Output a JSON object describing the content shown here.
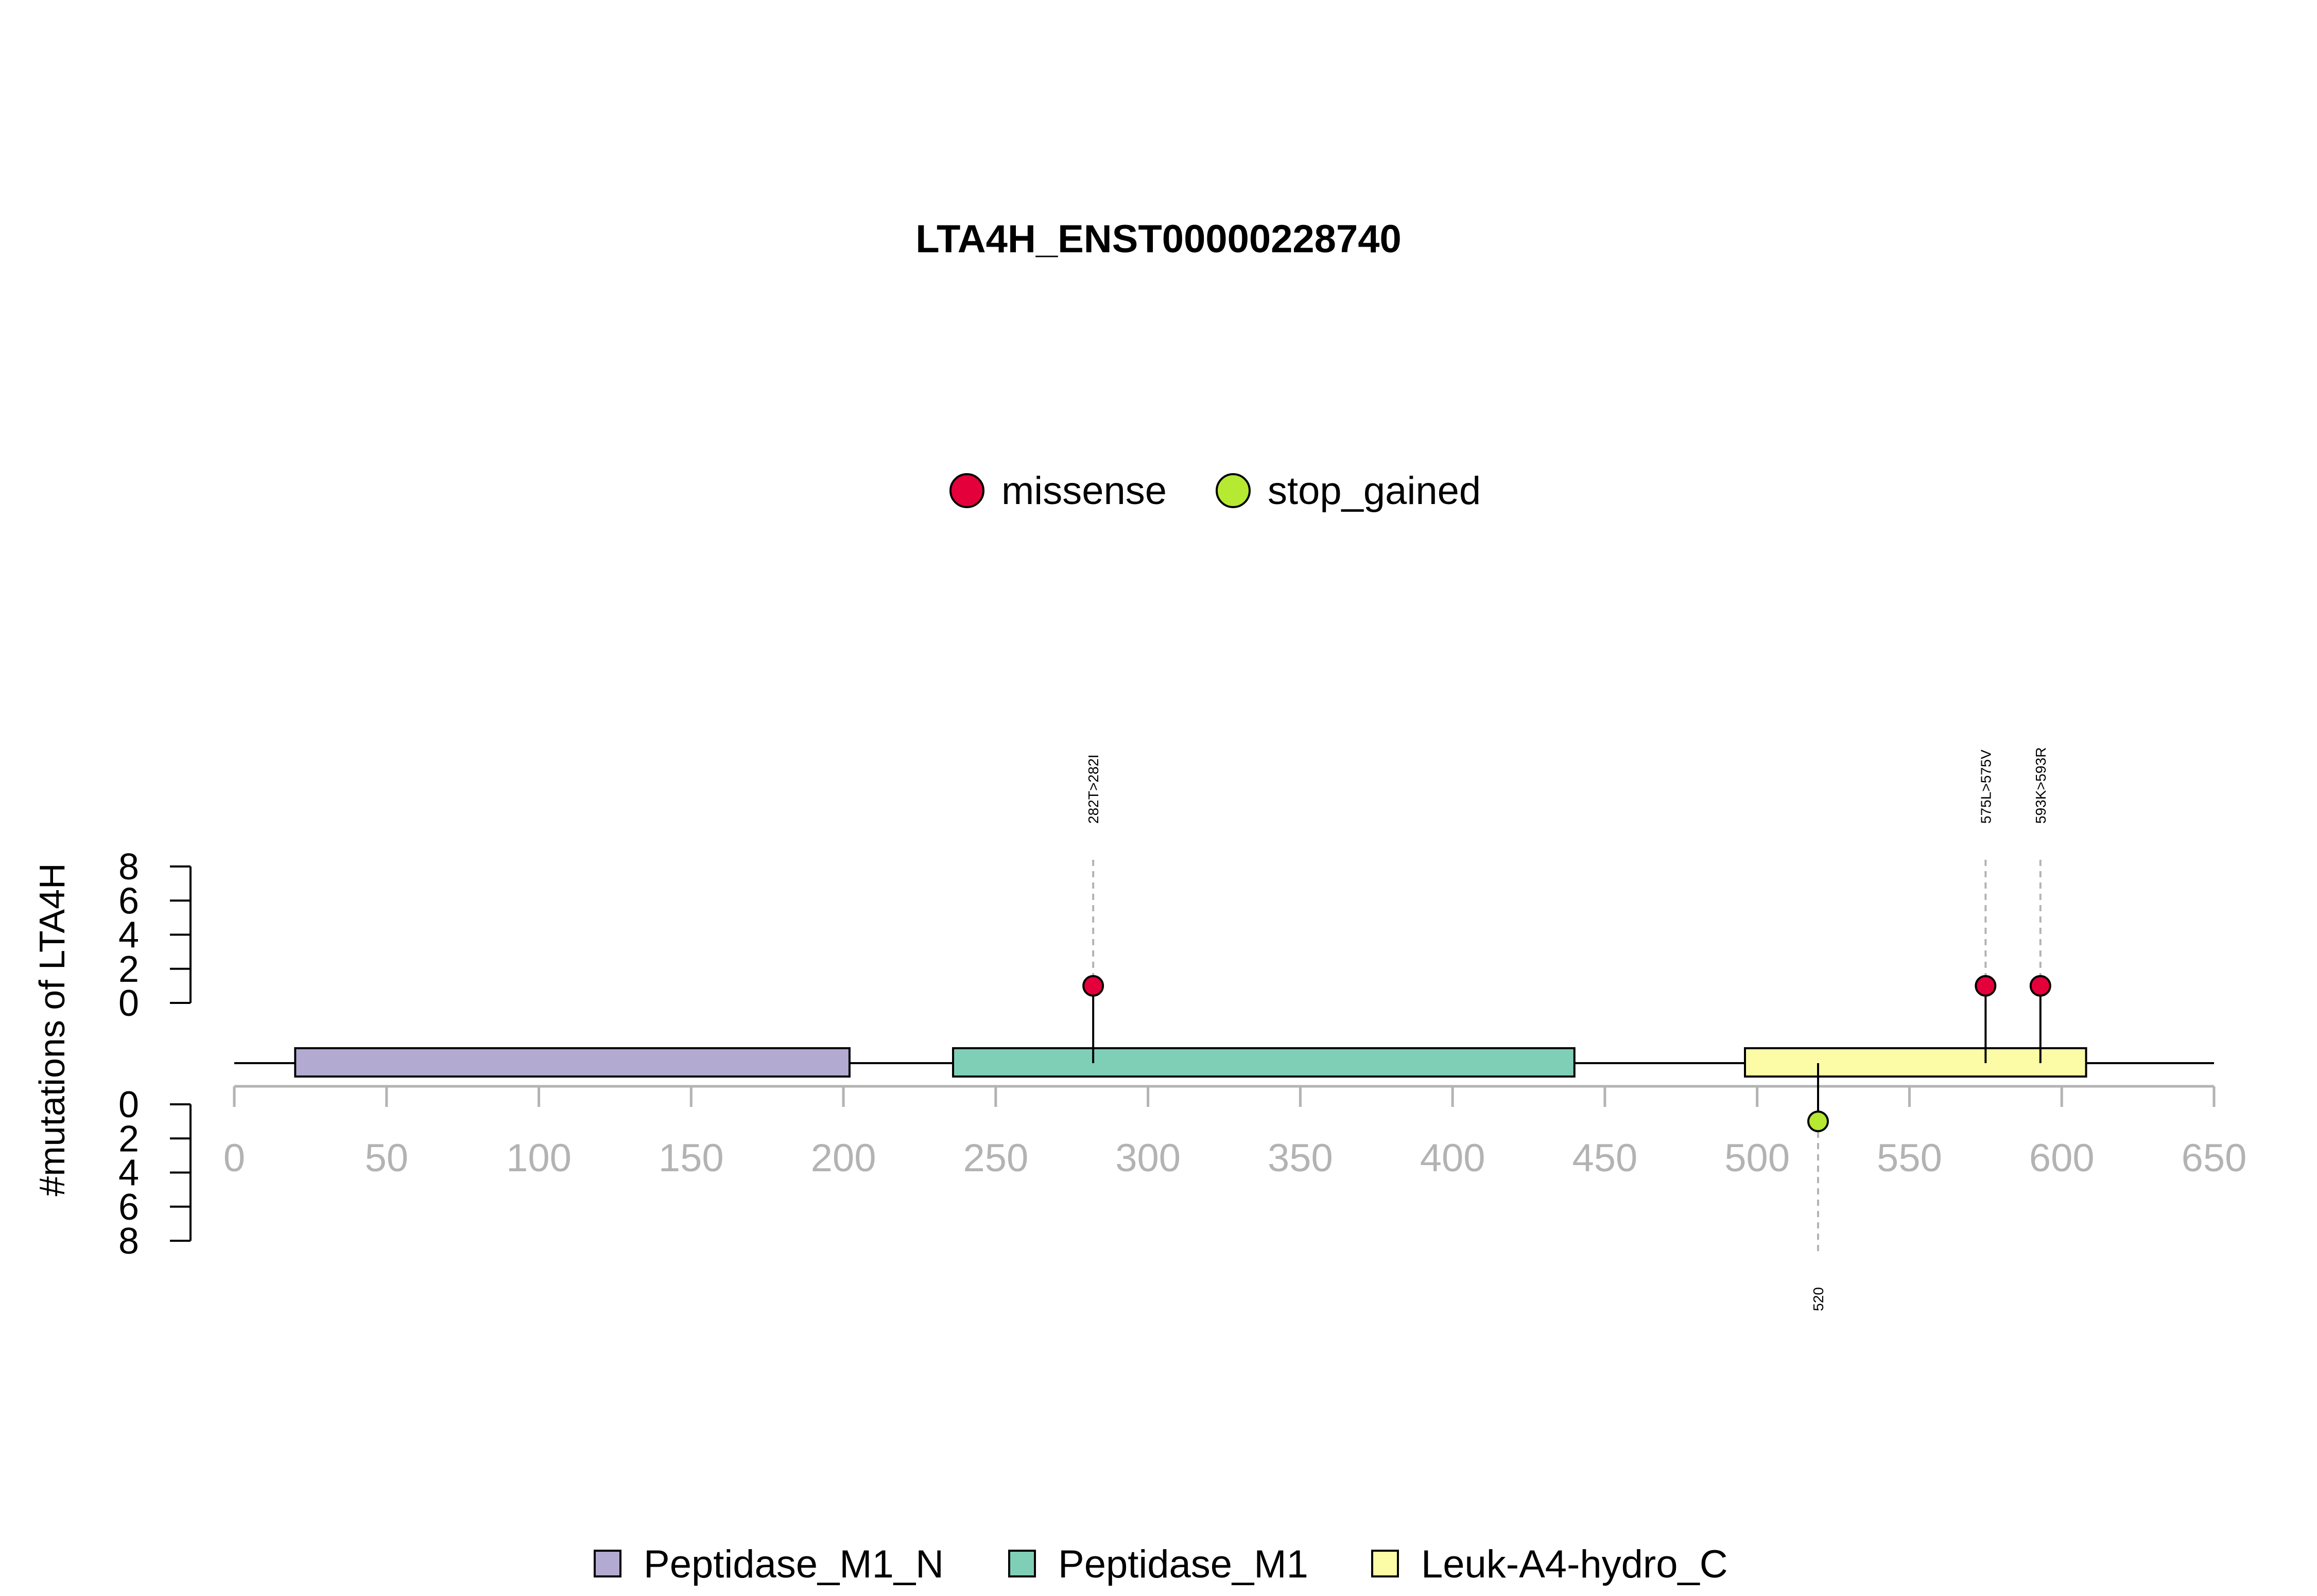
{
  "chart_data": {
    "type": "lollipop",
    "title": "LTA4H_ENST00000228740",
    "ylabel": "#mutations of LTA4H",
    "x_axis": {
      "range": [
        0,
        650
      ],
      "ticks": [
        0,
        50,
        100,
        150,
        200,
        250,
        300,
        350,
        400,
        450,
        500,
        550,
        600,
        650
      ],
      "color": "#b3b3b3"
    },
    "y_axis_upper": {
      "range": [
        0,
        8
      ],
      "ticks": [
        0,
        2,
        4,
        6,
        8
      ]
    },
    "y_axis_lower": {
      "range": [
        0,
        8
      ],
      "ticks": [
        0,
        2,
        4,
        6,
        8
      ]
    },
    "protein_length": 650,
    "mutation_types": [
      {
        "name": "missense",
        "color": "#e4003a"
      },
      {
        "name": "stop_gained",
        "color": "#b5e932"
      }
    ],
    "domains": [
      {
        "name": "Peptidase_M1_N",
        "start": 20,
        "end": 202,
        "color": "#b3aad2"
      },
      {
        "name": "Peptidase_M1",
        "start": 236,
        "end": 440,
        "color": "#7fcfb7"
      },
      {
        "name": "Leuk-A4-hydro_C",
        "start": 496,
        "end": 608,
        "color": "#fcfca6"
      }
    ],
    "mutations_upper": [
      {
        "position": 282,
        "count": 1,
        "type": "missense",
        "label": "282T>282I"
      },
      {
        "position": 575,
        "count": 1,
        "type": "missense",
        "label": "575L>575V"
      },
      {
        "position": 593,
        "count": 1,
        "type": "missense",
        "label": "593K>593R"
      }
    ],
    "mutations_lower": [
      {
        "position": 520,
        "count": 1,
        "type": "stop_gained",
        "label": "520"
      }
    ]
  }
}
